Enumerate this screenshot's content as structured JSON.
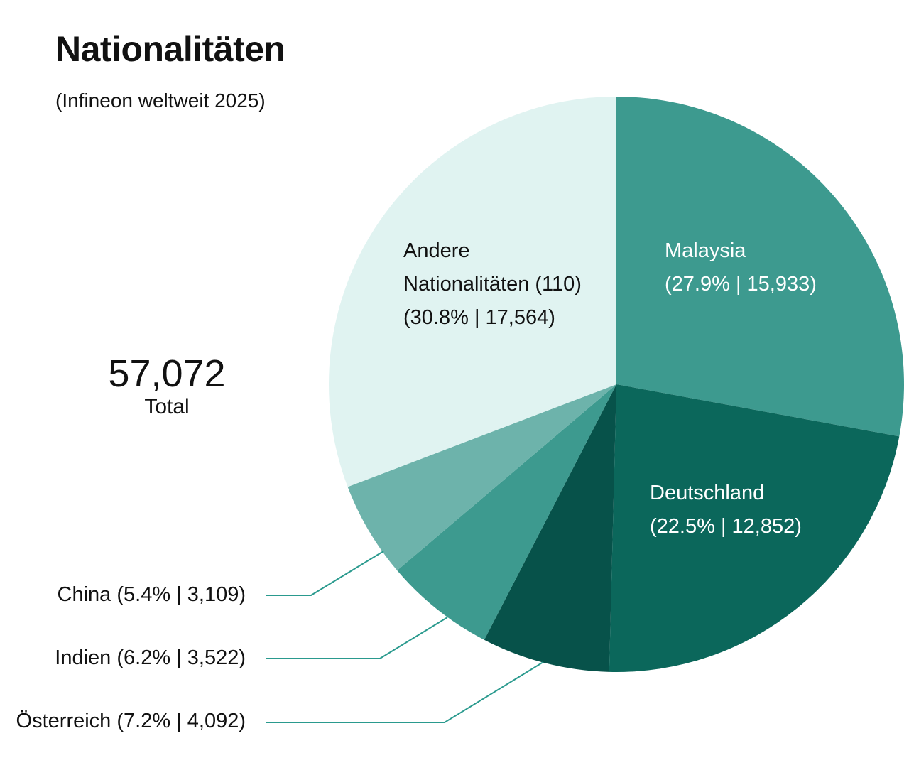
{
  "chart_data": {
    "type": "pie",
    "title": "Nationalitäten",
    "subtitle": "(Infineon weltweit 2025)",
    "total": {
      "value": "57,072",
      "label": "Total"
    },
    "slices": [
      {
        "name": "Malaysia",
        "percent": 27.9,
        "value": 15933,
        "line1": "Malaysia",
        "line2": "(27.9% | 15,933)",
        "color": "#3d9a8f"
      },
      {
        "name": "Deutschland",
        "percent": 22.5,
        "value": 12852,
        "line1": "Deutschland",
        "line2": "(22.5% | 12,852)",
        "color": "#0b675b"
      },
      {
        "name": "Österreich",
        "percent": 7.2,
        "value": 4092,
        "label": "Österreich (7.2% | 4,092)",
        "color": "#07524a"
      },
      {
        "name": "Indien",
        "percent": 6.2,
        "value": 3522,
        "label": "Indien (6.2% | 3,522)",
        "color": "#3d9a8f"
      },
      {
        "name": "China",
        "percent": 5.4,
        "value": 3109,
        "label": "China (5.4% | 3,109)",
        "color": "#6db3ab"
      },
      {
        "name": "Andere Nationalitäten (110)",
        "percent": 30.8,
        "value": 17564,
        "line1": "Andere",
        "line2": "Nationalitäten (110)",
        "line3": "(30.8% | 17,564)",
        "color": "#e0f3f1"
      }
    ],
    "leader_line_color": "#2a9a8e",
    "start": "top",
    "direction": "clockwise"
  }
}
